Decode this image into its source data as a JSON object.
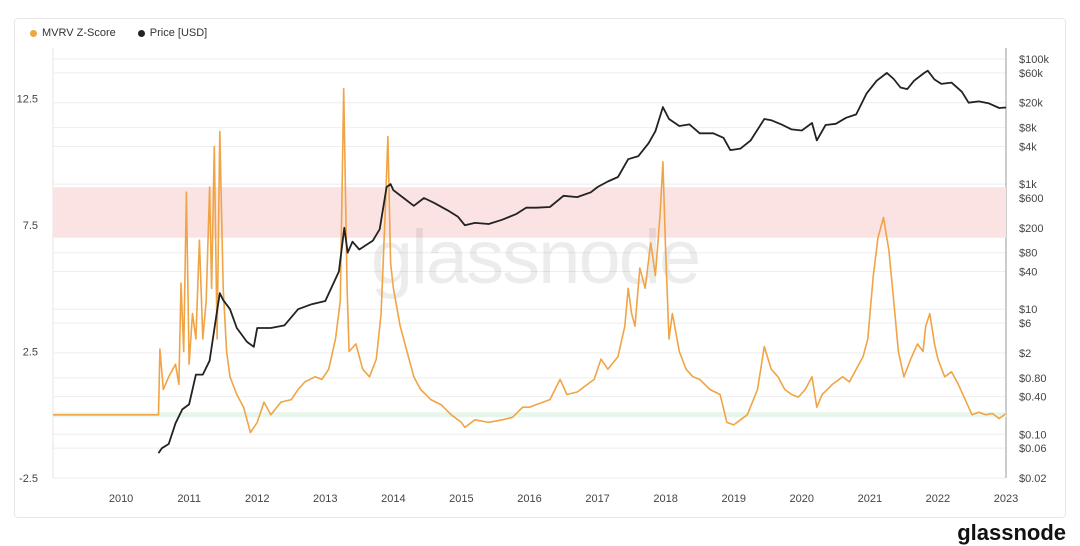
{
  "legend": {
    "mvrv_label": "MVRV Z-Score",
    "price_label": "Price [USD]"
  },
  "watermark": "glassnode",
  "footer_brand": "glassnode",
  "colors": {
    "mvrv": "#f0a445",
    "price": "#222222",
    "red_band": "#fbe3e3",
    "green_band": "#e7f5ea",
    "grid": "#eeeeee"
  },
  "chart_data": {
    "type": "line",
    "x_ticks": [
      "2010",
      "2011",
      "2012",
      "2013",
      "2014",
      "2015",
      "2016",
      "2017",
      "2018",
      "2019",
      "2020",
      "2021",
      "2022",
      "2023"
    ],
    "y_left_ticks": [
      "12.5",
      "7.5",
      "2.5",
      "-2.5"
    ],
    "y_left_range": [
      -2.5,
      14.5
    ],
    "y_right_ticks": [
      "$100k",
      "$60k",
      "$20k",
      "$8k",
      "$4k",
      "$1k",
      "$600",
      "$200",
      "$80",
      "$40",
      "$10",
      "$6",
      "$2",
      "$0.80",
      "$0.40",
      "$0.10",
      "$0.06",
      "$0.02"
    ],
    "y_right_scale": "log",
    "y_right_range": [
      0.02,
      150000
    ],
    "bands": [
      {
        "axis": "left",
        "from": 7.0,
        "to": 9.0,
        "color": "red"
      },
      {
        "axis": "left",
        "from": -0.1,
        "to": 0.1,
        "color": "green"
      }
    ],
    "series": [
      {
        "name": "MVRV Z-Score",
        "axis": "left",
        "points": [
          [
            2009.0,
            0.0
          ],
          [
            2010.55,
            0.0
          ],
          [
            2010.57,
            2.6
          ],
          [
            2010.62,
            1.0
          ],
          [
            2010.7,
            1.5
          ],
          [
            2010.8,
            2.0
          ],
          [
            2010.85,
            1.2
          ],
          [
            2010.88,
            5.2
          ],
          [
            2010.92,
            2.5
          ],
          [
            2010.96,
            8.8
          ],
          [
            2011.0,
            2.0
          ],
          [
            2011.05,
            4.0
          ],
          [
            2011.1,
            3.0
          ],
          [
            2011.15,
            6.9
          ],
          [
            2011.2,
            3.0
          ],
          [
            2011.25,
            4.5
          ],
          [
            2011.3,
            9.0
          ],
          [
            2011.33,
            5.0
          ],
          [
            2011.37,
            10.6
          ],
          [
            2011.41,
            3.0
          ],
          [
            2011.45,
            11.2
          ],
          [
            2011.5,
            5.0
          ],
          [
            2011.55,
            2.5
          ],
          [
            2011.6,
            1.5
          ],
          [
            2011.7,
            0.8
          ],
          [
            2011.8,
            0.3
          ],
          [
            2011.9,
            -0.7
          ],
          [
            2012.0,
            -0.3
          ],
          [
            2012.1,
            0.5
          ],
          [
            2012.2,
            0.0
          ],
          [
            2012.35,
            0.5
          ],
          [
            2012.5,
            0.6
          ],
          [
            2012.6,
            1.0
          ],
          [
            2012.7,
            1.3
          ],
          [
            2012.85,
            1.5
          ],
          [
            2012.95,
            1.4
          ],
          [
            2013.05,
            1.8
          ],
          [
            2013.15,
            3.0
          ],
          [
            2013.22,
            4.5
          ],
          [
            2013.27,
            12.9
          ],
          [
            2013.32,
            5.0
          ],
          [
            2013.35,
            2.5
          ],
          [
            2013.45,
            2.8
          ],
          [
            2013.55,
            1.8
          ],
          [
            2013.65,
            1.5
          ],
          [
            2013.75,
            2.2
          ],
          [
            2013.82,
            4.0
          ],
          [
            2013.88,
            8.0
          ],
          [
            2013.92,
            11.0
          ],
          [
            2013.96,
            6.0
          ],
          [
            2014.0,
            5.0
          ],
          [
            2014.1,
            3.5
          ],
          [
            2014.2,
            2.5
          ],
          [
            2014.3,
            1.5
          ],
          [
            2014.4,
            1.0
          ],
          [
            2014.55,
            0.6
          ],
          [
            2014.7,
            0.4
          ],
          [
            2014.85,
            0.0
          ],
          [
            2015.0,
            -0.3
          ],
          [
            2015.05,
            -0.5
          ],
          [
            2015.2,
            -0.2
          ],
          [
            2015.4,
            -0.3
          ],
          [
            2015.6,
            -0.2
          ],
          [
            2015.75,
            -0.1
          ],
          [
            2015.9,
            0.3
          ],
          [
            2016.0,
            0.3
          ],
          [
            2016.1,
            0.4
          ],
          [
            2016.3,
            0.6
          ],
          [
            2016.45,
            1.4
          ],
          [
            2016.55,
            0.8
          ],
          [
            2016.7,
            0.9
          ],
          [
            2016.85,
            1.2
          ],
          [
            2016.95,
            1.4
          ],
          [
            2017.05,
            2.2
          ],
          [
            2017.15,
            1.8
          ],
          [
            2017.3,
            2.3
          ],
          [
            2017.4,
            3.5
          ],
          [
            2017.45,
            5.0
          ],
          [
            2017.5,
            4.0
          ],
          [
            2017.55,
            3.5
          ],
          [
            2017.62,
            5.8
          ],
          [
            2017.7,
            5.0
          ],
          [
            2017.78,
            6.8
          ],
          [
            2017.85,
            5.5
          ],
          [
            2017.92,
            8.0
          ],
          [
            2017.96,
            10.0
          ],
          [
            2018.0,
            6.5
          ],
          [
            2018.05,
            3.0
          ],
          [
            2018.1,
            4.0
          ],
          [
            2018.2,
            2.5
          ],
          [
            2018.3,
            1.8
          ],
          [
            2018.4,
            1.5
          ],
          [
            2018.5,
            1.4
          ],
          [
            2018.65,
            1.0
          ],
          [
            2018.8,
            0.8
          ],
          [
            2018.9,
            -0.3
          ],
          [
            2019.0,
            -0.4
          ],
          [
            2019.1,
            -0.2
          ],
          [
            2019.2,
            0.0
          ],
          [
            2019.35,
            1.0
          ],
          [
            2019.45,
            2.7
          ],
          [
            2019.55,
            1.8
          ],
          [
            2019.65,
            1.5
          ],
          [
            2019.75,
            1.0
          ],
          [
            2019.85,
            0.8
          ],
          [
            2019.95,
            0.7
          ],
          [
            2020.05,
            1.0
          ],
          [
            2020.15,
            1.5
          ],
          [
            2020.22,
            0.3
          ],
          [
            2020.3,
            0.8
          ],
          [
            2020.45,
            1.2
          ],
          [
            2020.6,
            1.5
          ],
          [
            2020.7,
            1.3
          ],
          [
            2020.8,
            1.8
          ],
          [
            2020.9,
            2.3
          ],
          [
            2020.97,
            3.0
          ],
          [
            2021.05,
            5.5
          ],
          [
            2021.12,
            7.0
          ],
          [
            2021.2,
            7.8
          ],
          [
            2021.28,
            6.5
          ],
          [
            2021.35,
            4.5
          ],
          [
            2021.42,
            2.5
          ],
          [
            2021.5,
            1.5
          ],
          [
            2021.6,
            2.2
          ],
          [
            2021.7,
            2.8
          ],
          [
            2021.78,
            2.5
          ],
          [
            2021.82,
            3.5
          ],
          [
            2021.88,
            4.0
          ],
          [
            2021.95,
            2.8
          ],
          [
            2022.0,
            2.2
          ],
          [
            2022.1,
            1.5
          ],
          [
            2022.2,
            1.7
          ],
          [
            2022.3,
            1.2
          ],
          [
            2022.4,
            0.6
          ],
          [
            2022.5,
            0.0
          ],
          [
            2022.6,
            0.1
          ],
          [
            2022.7,
            0.0
          ],
          [
            2022.8,
            0.05
          ],
          [
            2022.9,
            -0.15
          ],
          [
            2023.0,
            0.05
          ]
        ]
      },
      {
        "name": "Price [USD]",
        "axis": "right",
        "points": [
          [
            2010.55,
            0.05
          ],
          [
            2010.6,
            0.06
          ],
          [
            2010.7,
            0.07
          ],
          [
            2010.8,
            0.15
          ],
          [
            2010.9,
            0.25
          ],
          [
            2011.0,
            0.3
          ],
          [
            2011.1,
            0.9
          ],
          [
            2011.2,
            0.9
          ],
          [
            2011.3,
            1.5
          ],
          [
            2011.4,
            8
          ],
          [
            2011.45,
            18
          ],
          [
            2011.5,
            14
          ],
          [
            2011.6,
            10
          ],
          [
            2011.7,
            5
          ],
          [
            2011.85,
            3
          ],
          [
            2011.95,
            2.5
          ],
          [
            2012.0,
            5
          ],
          [
            2012.2,
            5
          ],
          [
            2012.4,
            5.5
          ],
          [
            2012.6,
            10
          ],
          [
            2012.8,
            12
          ],
          [
            2013.0,
            13.5
          ],
          [
            2013.2,
            40
          ],
          [
            2013.28,
            200
          ],
          [
            2013.33,
            80
          ],
          [
            2013.4,
            120
          ],
          [
            2013.5,
            90
          ],
          [
            2013.7,
            125
          ],
          [
            2013.8,
            190
          ],
          [
            2013.9,
            900
          ],
          [
            2013.96,
            1000
          ],
          [
            2014.0,
            800
          ],
          [
            2014.15,
            600
          ],
          [
            2014.3,
            450
          ],
          [
            2014.45,
            600
          ],
          [
            2014.6,
            500
          ],
          [
            2014.8,
            380
          ],
          [
            2014.95,
            300
          ],
          [
            2015.05,
            220
          ],
          [
            2015.2,
            240
          ],
          [
            2015.4,
            230
          ],
          [
            2015.6,
            270
          ],
          [
            2015.8,
            330
          ],
          [
            2015.95,
            420
          ],
          [
            2016.1,
            420
          ],
          [
            2016.3,
            430
          ],
          [
            2016.5,
            650
          ],
          [
            2016.7,
            620
          ],
          [
            2016.9,
            740
          ],
          [
            2017.0,
            900
          ],
          [
            2017.15,
            1100
          ],
          [
            2017.3,
            1300
          ],
          [
            2017.45,
            2500
          ],
          [
            2017.6,
            2800
          ],
          [
            2017.75,
            4500
          ],
          [
            2017.85,
            7000
          ],
          [
            2017.96,
            17000
          ],
          [
            2018.05,
            11000
          ],
          [
            2018.2,
            8500
          ],
          [
            2018.35,
            9000
          ],
          [
            2018.5,
            6500
          ],
          [
            2018.7,
            6500
          ],
          [
            2018.85,
            5500
          ],
          [
            2018.95,
            3500
          ],
          [
            2019.1,
            3700
          ],
          [
            2019.25,
            5000
          ],
          [
            2019.45,
            11000
          ],
          [
            2019.55,
            10500
          ],
          [
            2019.7,
            9000
          ],
          [
            2019.85,
            7500
          ],
          [
            2020.0,
            7200
          ],
          [
            2020.15,
            9500
          ],
          [
            2020.22,
            5000
          ],
          [
            2020.35,
            8800
          ],
          [
            2020.5,
            9200
          ],
          [
            2020.65,
            11500
          ],
          [
            2020.8,
            13000
          ],
          [
            2020.95,
            28000
          ],
          [
            2021.1,
            45000
          ],
          [
            2021.25,
            60000
          ],
          [
            2021.35,
            48000
          ],
          [
            2021.45,
            35000
          ],
          [
            2021.55,
            33000
          ],
          [
            2021.65,
            45000
          ],
          [
            2021.8,
            60000
          ],
          [
            2021.85,
            65000
          ],
          [
            2021.95,
            47000
          ],
          [
            2022.05,
            40000
          ],
          [
            2022.2,
            42000
          ],
          [
            2022.35,
            30000
          ],
          [
            2022.45,
            20000
          ],
          [
            2022.6,
            21000
          ],
          [
            2022.75,
            19500
          ],
          [
            2022.9,
            16500
          ],
          [
            2023.0,
            16800
          ]
        ]
      }
    ]
  }
}
